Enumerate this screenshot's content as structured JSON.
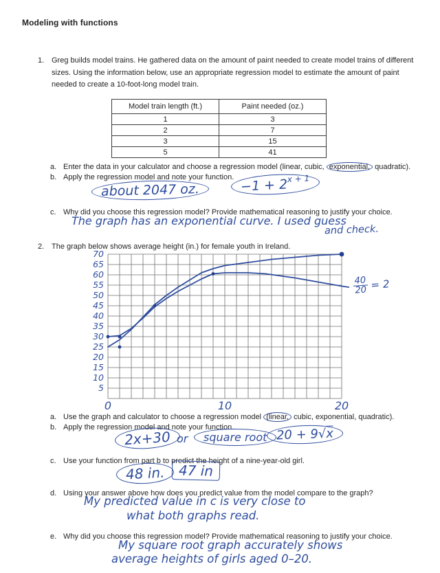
{
  "page": {
    "title": "Modeling with functions"
  },
  "colors": {
    "ink": "#2e4d9e",
    "print": "#1f1f1f",
    "grid": "#6f6f6f"
  },
  "q1": {
    "number": "1.",
    "prompt": "Greg builds model trains. He gathered data on the amount of paint needed to create model trains of different sizes. Using the information below, use an appropriate regression model to estimate the amount of paint needed to create a 10-foot-long model train.",
    "table": {
      "headers": [
        "Model train length (ft.)",
        "Paint needed (oz.)"
      ],
      "rows": [
        [
          "1",
          "3"
        ],
        [
          "2",
          "7"
        ],
        [
          "3",
          "15"
        ],
        [
          "5",
          "41"
        ]
      ]
    },
    "part_a": {
      "label": "a.",
      "pre": "Enter the data in your calculator and choose a regression model (linear, cubic,",
      "circled": "exponential,",
      "post": "quadratic)."
    },
    "part_b": {
      "label": "b.",
      "text": "Apply the regression model and note your function.",
      "answer_estimate": "about 2047 oz.",
      "answer_fn_base": "−1 + 2",
      "answer_fn_exponent": "x + 1"
    },
    "part_c": {
      "label": "c.",
      "text": "Why did you choose this regression model? Provide mathematical reasoning to justify your choice.",
      "answer_line1": "The graph has an exponential curve.  I used guess",
      "answer_line2": "and check."
    }
  },
  "q2": {
    "number": "2.",
    "prompt": "The graph below shows average height (in.) for female youth in Ireland.",
    "graph": {
      "chart_data": {
        "type": "line",
        "title": "Average height (in.) for female youth in Ireland",
        "xlabel": "",
        "ylabel": "",
        "xlim": [
          0,
          20
        ],
        "ylim": [
          0,
          70
        ],
        "grid": true,
        "x_grid_step": 1,
        "y_grid_step": 5,
        "x_ticks": [
          {
            "v": 0,
            "label": "0"
          },
          {
            "v": 10,
            "label": "10"
          },
          {
            "v": 20,
            "label": "20"
          }
        ],
        "y_ticks": [
          5,
          10,
          15,
          20,
          25,
          30,
          35,
          40,
          45,
          50,
          55,
          60,
          65,
          70
        ],
        "series": [
          {
            "name": "hand-drawn curve rising to top right",
            "points": [
              [
                0,
                25
              ],
              [
                1,
                28.5
              ],
              [
                2,
                33.5
              ],
              [
                3,
                39.5
              ],
              [
                4,
                45.5
              ],
              [
                5,
                50
              ],
              [
                6,
                54
              ],
              [
                7,
                57.5
              ],
              [
                8,
                61
              ],
              [
                9,
                63
              ],
              [
                10,
                64.5
              ],
              [
                12,
                66
              ],
              [
                14,
                67.5
              ],
              [
                16,
                68.5
              ],
              [
                18,
                69.5
              ],
              [
                20,
                70
              ]
            ]
          },
          {
            "name": "hand-drawn curve flattening near 61 then declining",
            "points": [
              [
                0,
                30
              ],
              [
                1,
                30.5
              ],
              [
                2,
                34
              ],
              [
                3,
                39
              ],
              [
                4,
                44.5
              ],
              [
                5,
                48.5
              ],
              [
                6,
                52
              ],
              [
                7,
                55
              ],
              [
                8,
                58
              ],
              [
                9,
                60.5
              ],
              [
                10,
                61
              ],
              [
                12,
                61
              ],
              [
                13.5,
                60.5
              ],
              [
                16,
                58.5
              ],
              [
                18,
                56.5
              ],
              [
                20,
                54.5
              ],
              [
                20.6,
                54
              ]
            ]
          }
        ],
        "marked_points": [
          [
            0,
            30
          ],
          [
            1,
            30
          ],
          [
            1,
            25
          ],
          [
            4,
            45
          ],
          [
            9,
            60.5
          ],
          [
            20,
            70
          ]
        ]
      },
      "annotation": {
        "numerator": "40",
        "denominator": "20",
        "result": "= 2"
      }
    },
    "part_a": {
      "label": "a.",
      "pre": "Use the graph and calculator to choose a regression model",
      "circled": "(linear,",
      "post": "cubic, exponential, quadratic)."
    },
    "part_b": {
      "label": "b.",
      "text": "Apply the regression model and note your function.",
      "answer_linear": "2x+30",
      "conjunction": "or",
      "answer_model_name": "square root",
      "answer_sqrt_pre": "20 + 9√",
      "answer_sqrt_radicand": "x"
    },
    "part_c": {
      "label": "c.",
      "text": "Use your function from part b to predict the height of a nine-year-old girl.",
      "answer_circled": "48 in.",
      "answer_boxed": "47 in"
    },
    "part_d": {
      "label": "d.",
      "text": "Using your answer above how does you predict value from the model compare to the graph?",
      "answer_line1": "My predicted value in c is very close to",
      "answer_line2": "what both graphs read."
    },
    "part_e": {
      "label": "e.",
      "text": "Why did you choose this regression model? Provide mathematical reasoning to justify your choice.",
      "answer_line1": "My square root graph accurately shows",
      "answer_line2": "average heights of girls aged 0–20."
    }
  }
}
